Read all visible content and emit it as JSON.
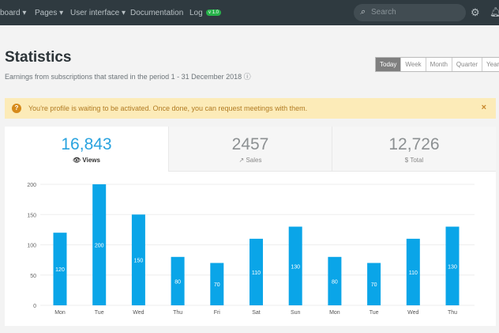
{
  "nav": {
    "items": [
      "board ▾",
      "Pages ▾",
      "User interface ▾",
      "Documentation",
      "Log"
    ],
    "badge": "v 1.0",
    "search_placeholder": "Search"
  },
  "header": {
    "title": "Statistics",
    "subtitle": "Earnings from subscriptions that stared in the period 1 - 31 December 2018 ⓘ"
  },
  "periods": [
    "Today",
    "Week",
    "Month",
    "Quarter",
    "Year"
  ],
  "alert": {
    "text": "You're profile is waiting to be activated. Once done, you can request meetings with them.",
    "close": "×"
  },
  "stats": [
    {
      "value": "16,843",
      "label": "Views",
      "icon": "👁"
    },
    {
      "value": "2457",
      "label": "Sales",
      "icon": "↗"
    },
    {
      "value": "12,726",
      "label": "Total",
      "icon": "$"
    }
  ],
  "colors": {
    "bar": "#0aa5e8",
    "accent": "#2aa3df"
  },
  "chart_data": {
    "type": "bar",
    "categories": [
      "Mon",
      "Tue",
      "Wed",
      "Thu",
      "Fri",
      "Sat",
      "Sun",
      "Mon",
      "Tue",
      "Wed",
      "Thu"
    ],
    "values": [
      120,
      200,
      150,
      80,
      70,
      110,
      130,
      80,
      70,
      110,
      130
    ],
    "ylim": [
      0,
      200
    ],
    "yticks": [
      0,
      50,
      100,
      150,
      200
    ],
    "title": "",
    "xlabel": "",
    "ylabel": ""
  }
}
